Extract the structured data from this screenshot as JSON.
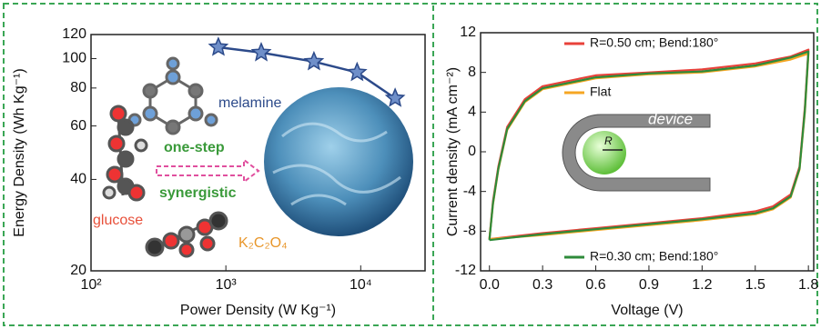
{
  "chart_data": [
    {
      "type": "line",
      "xscale": "log",
      "yscale": "log",
      "xlabel": "Power Density (W Kg⁻¹)",
      "ylabel": "Energy Density (Wh Kg⁻¹)",
      "xlim": [
        100,
        30000
      ],
      "ylim": [
        20,
        120
      ],
      "xticks": [
        {
          "value": 100,
          "label": "10²"
        },
        {
          "value": 1000,
          "label": "10³"
        },
        {
          "value": 10000,
          "label": "10⁴"
        }
      ],
      "yticks": [
        20,
        40,
        60,
        80,
        100,
        120
      ],
      "annotations": [
        "melamine",
        "one-step",
        "synergistic",
        "glucose",
        "K₂C₂O₄"
      ],
      "series": [
        {
          "color": "#2c4a8a",
          "marker": "star",
          "x": [
            880,
            1830,
            4500,
            9400,
            18000
          ],
          "values": [
            109,
            104.6,
            97.7,
            90,
            74
          ]
        }
      ]
    },
    {
      "type": "line",
      "xlabel": "Voltage (V)",
      "ylabel": "Current density (mA cm⁻²)",
      "xlim": [
        -0.05,
        1.83
      ],
      "ylim": [
        -12,
        12
      ],
      "xticks": [
        {
          "value": 0,
          "label": "0.0"
        },
        0.3,
        0.6,
        0.9,
        1.2,
        1.5,
        1.8
      ],
      "yticks": [
        -12,
        -8,
        -4,
        0,
        4,
        8,
        12
      ],
      "annotations": [
        "device",
        "R"
      ],
      "x": [
        0,
        0.02,
        0.05,
        0.1,
        0.2,
        0.3,
        0.6,
        0.9,
        1.2,
        1.5,
        1.7,
        1.8,
        1.78,
        1.75,
        1.7,
        1.6,
        1.5,
        1.2,
        0.9,
        0.6,
        0.3,
        0
      ],
      "series": [
        {
          "name": "R=0.50 cm; Bend:180°",
          "color": "#e8413a",
          "values": [
            -8.8,
            -5,
            -1.5,
            2.5,
            5.3,
            6.6,
            7.7,
            8.0,
            8.3,
            8.9,
            9.6,
            10.3,
            4.5,
            -1.5,
            -4.3,
            -5.5,
            -6.0,
            -6.7,
            -7.2,
            -7.7,
            -8.2,
            -8.8
          ]
        },
        {
          "name": "Flat",
          "color": "#f5a623",
          "values": [
            -8.8,
            -5.3,
            -1.8,
            2.2,
            5.0,
            6.3,
            7.4,
            7.8,
            8.0,
            8.6,
            9.3,
            9.9,
            4.0,
            -1.8,
            -4.6,
            -5.8,
            -6.3,
            -6.9,
            -7.4,
            -7.9,
            -8.4,
            -8.8
          ]
        },
        {
          "name": "R=0.30 cm; Bend:180°",
          "color": "#2e8b3a",
          "values": [
            -8.9,
            -5.2,
            -1.7,
            2.3,
            5.1,
            6.4,
            7.5,
            7.9,
            8.1,
            8.7,
            9.5,
            10.1,
            4.2,
            -1.7,
            -4.5,
            -5.7,
            -6.2,
            -6.8,
            -7.3,
            -7.8,
            -8.3,
            -8.9
          ]
        }
      ]
    }
  ]
}
